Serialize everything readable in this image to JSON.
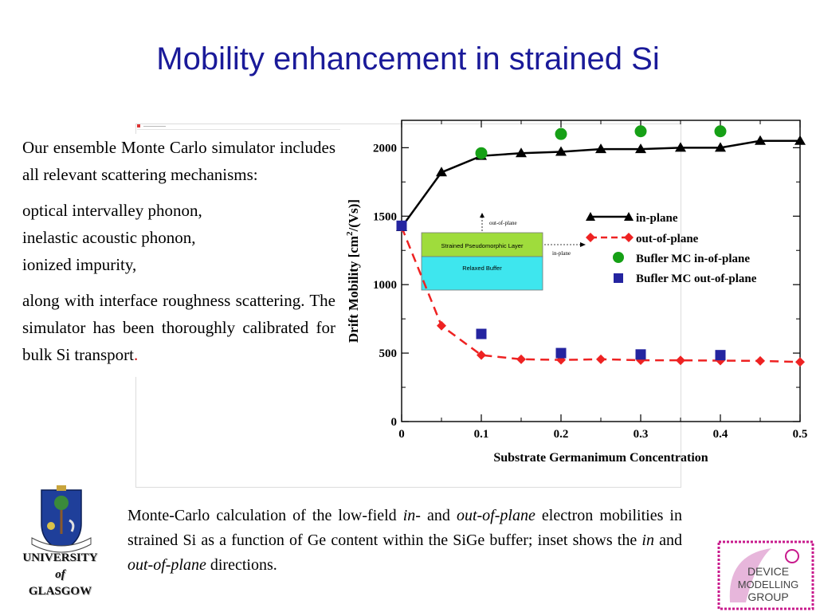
{
  "slide": {
    "title": "Mobility enhancement in strained Si",
    "body_paragraphs": [
      "Our ensemble Monte Carlo simulator includes all relevant scattering mechanisms:",
      "optical intervalley phonon,",
      "inelastic acoustic phonon,",
      "ionized impurity,",
      "along with interface roughness scattering. The simulator has been thoroughly calibrated for bulk Si transport"
    ],
    "final_punct": ".",
    "caption": {
      "part1": "Monte-Carlo calculation of the low-field ",
      "in1": "in-",
      "and1": " and ",
      "oop1": "out-of-plane",
      "part2": " electron mobilities in strained Si as a function of Ge content within the SiGe buffer; inset shows the ",
      "in2": "in",
      "and2": " and ",
      "oop2": "out-of-plane",
      "part3": " directions."
    },
    "university": {
      "line1": "UNIVERSITY",
      "line2": "of",
      "line3": "GLASGOW"
    },
    "group_logo_lines": [
      "DEVICE",
      "MODELLING",
      "GROUP"
    ],
    "colors": {
      "title": "#1a1a99",
      "in_plane": "#000000",
      "out_of_plane": "#ee2222",
      "bufler_in": "#16a016",
      "bufler_out": "#2424a0"
    }
  },
  "chart_data": {
    "type": "line",
    "xlabel": "Substrate Germanimum Concentration",
    "ylabel": "Drift Mobility [cm2/(Vs)]",
    "xlim": [
      0,
      0.5
    ],
    "ylim": [
      0,
      2200
    ],
    "xticks": [
      "0",
      "0.1",
      "0.2",
      "0.3",
      "0.4",
      "0.5"
    ],
    "xtick_values": [
      0,
      0.1,
      0.2,
      0.3,
      0.4,
      0.5
    ],
    "yticks": [
      "0",
      "500",
      "1000",
      "1500",
      "2000"
    ],
    "ytick_values": [
      0,
      500,
      1000,
      1500,
      2000
    ],
    "grid": false,
    "legend_position": "right",
    "series": [
      {
        "name": "in-plane",
        "marker": "triangle",
        "line": "solid",
        "x": [
          0,
          0.05,
          0.1,
          0.15,
          0.2,
          0.25,
          0.3,
          0.35,
          0.4,
          0.45,
          0.5
        ],
        "y": [
          1420,
          1820,
          1940,
          1960,
          1970,
          1990,
          1990,
          2000,
          2000,
          2050,
          2050
        ]
      },
      {
        "name": "out-of-plane",
        "marker": "diamond",
        "line": "dashed",
        "x": [
          0,
          0.05,
          0.1,
          0.15,
          0.2,
          0.25,
          0.3,
          0.35,
          0.4,
          0.45,
          0.5
        ],
        "y": [
          1420,
          700,
          485,
          455,
          450,
          455,
          448,
          447,
          445,
          443,
          435
        ]
      },
      {
        "name": "Bufler MC in-of-plane",
        "marker": "circle",
        "line": "none",
        "x": [
          0.1,
          0.2,
          0.3,
          0.4
        ],
        "y": [
          1960,
          2100,
          2120,
          2120
        ]
      },
      {
        "name": "Bufler MC out-of-plane",
        "marker": "square",
        "line": "none",
        "x": [
          0,
          0.1,
          0.2,
          0.3,
          0.4
        ],
        "y": [
          1430,
          640,
          500,
          490,
          485
        ]
      }
    ],
    "inset": {
      "top_layer": "Strained Pseudomorphic Layer",
      "bottom_layer": "Relaxed Buffer",
      "up_arrow": "out-of-plane",
      "side_arrow": "in-plane"
    }
  }
}
